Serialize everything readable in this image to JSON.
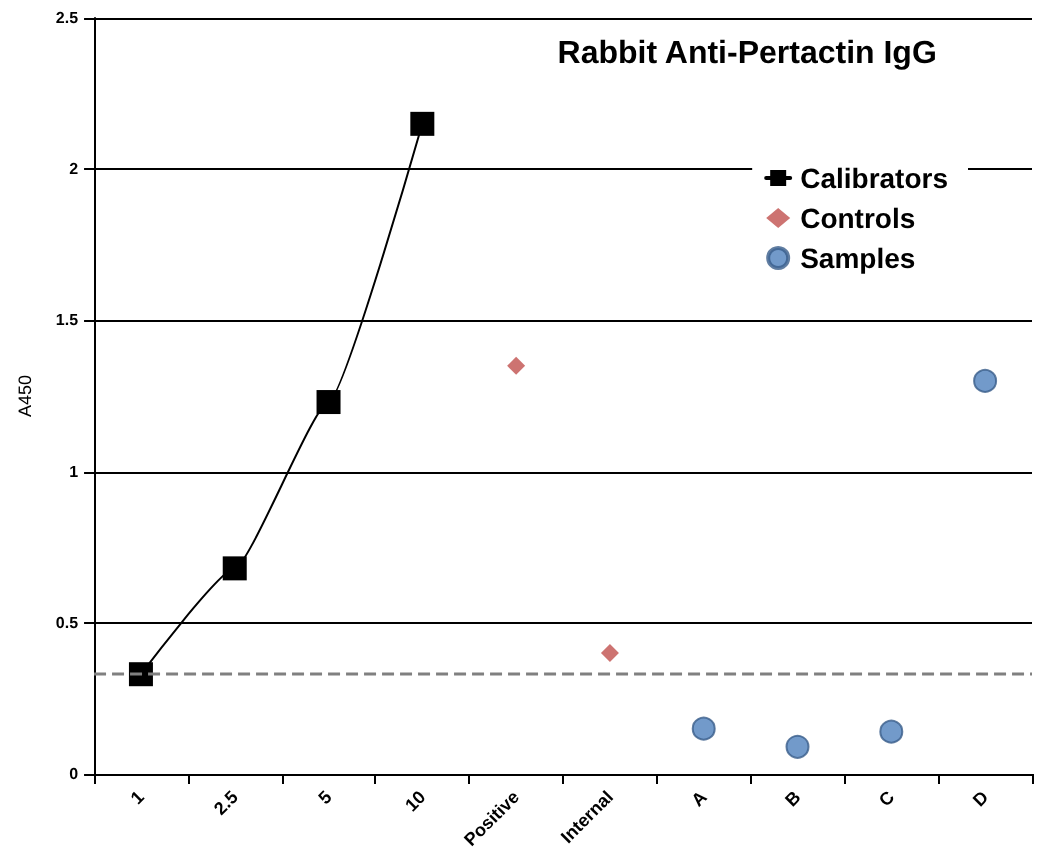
{
  "chart_data": {
    "type": "scatter",
    "title": "Rabbit Anti-Pertactin IgG",
    "ylabel": "A450",
    "categories": [
      "1",
      "2.5",
      "5",
      "10",
      "Positive",
      "Internal",
      "A",
      "B",
      "C",
      "D"
    ],
    "series": [
      {
        "name": "Calibrators",
        "type": "line",
        "color": "#000000",
        "marker": "square",
        "line_style": "solid",
        "values": [
          0.33,
          0.68,
          1.23,
          2.15,
          null,
          null,
          null,
          null,
          null,
          null
        ]
      },
      {
        "name": "Controls",
        "color": "#c0504d",
        "marker": "diamond",
        "values": [
          null,
          null,
          null,
          null,
          1.35,
          0.4,
          null,
          null,
          null,
          null
        ]
      },
      {
        "name": "Samples",
        "color": "#4f81bd",
        "marker": "circle",
        "values": [
          null,
          null,
          null,
          null,
          null,
          null,
          0.15,
          0.09,
          0.14,
          1.3
        ]
      }
    ],
    "ylim": [
      0,
      2.5
    ],
    "yticks": [
      0,
      0.5,
      1,
      1.5,
      2,
      2.5
    ],
    "grid": "y",
    "legend": "top right",
    "ref_lines": [
      {
        "axis": "y",
        "value": 0.33,
        "color": "#808080",
        "line_style": "dashed"
      }
    ]
  }
}
